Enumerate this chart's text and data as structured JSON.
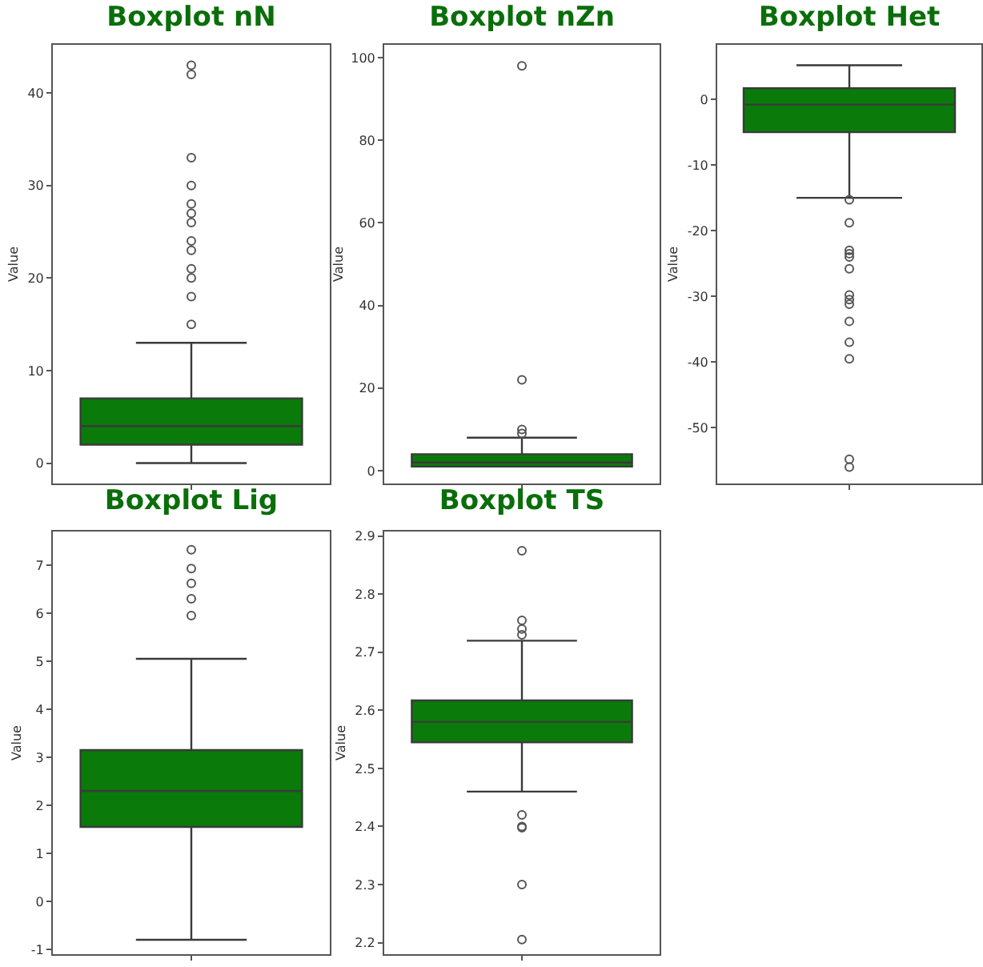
{
  "chart_data": [
    {
      "type": "box",
      "title": "Boxplot nN",
      "ylabel": "Value",
      "categories": [
        null
      ],
      "tick_labels": "y",
      "grid": false,
      "ylim": [
        -2.2,
        45.2
      ],
      "yticks": [
        0,
        10,
        20,
        30,
        40
      ],
      "series": [
        {
          "color": "#0a7a0a",
          "boxes": [
            {
              "low": 0,
              "q1": 2,
              "median": 4,
              "q3": 7,
              "high": 13,
              "outliers": [
                15,
                18,
                20,
                21,
                23,
                24,
                26,
                27,
                28,
                30,
                33,
                42,
                43
              ]
            }
          ]
        }
      ]
    },
    {
      "type": "box",
      "title": "Boxplot nZn",
      "ylabel": "Value",
      "categories": [
        null
      ],
      "tick_labels": "y",
      "grid": false,
      "ylim": [
        -3.1,
        103.1
      ],
      "yticks": [
        0,
        20,
        40,
        60,
        80,
        100
      ],
      "series": [
        {
          "color": "#0a7a0a",
          "boxes": [
            {
              "low": 1,
              "q1": 1,
              "median": 2,
              "q3": 4,
              "high": 8,
              "outliers": [
                9,
                10,
                22,
                98
              ]
            }
          ]
        }
      ]
    },
    {
      "type": "box",
      "title": "Boxplot Het",
      "ylabel": "Value",
      "categories": [
        null
      ],
      "tick_labels": "y",
      "grid": false,
      "ylim": [
        -58.5,
        8.3
      ],
      "yticks": [
        -50,
        -40,
        -30,
        -20,
        -10,
        0
      ],
      "series": [
        {
          "color": "#0a7a0a",
          "boxes": [
            {
              "low": -15,
              "q1": -5,
              "median": -0.8,
              "q3": 1.7,
              "high": 5.2,
              "outliers": [
                -15.3,
                -18.8,
                -23,
                -23.5,
                -24,
                -25.8,
                -29.8,
                -30.5,
                -31.2,
                -33.8,
                -37,
                -39.5,
                -54.8,
                -56
              ]
            }
          ]
        }
      ]
    },
    {
      "type": "box",
      "title": "Boxplot Lig",
      "ylabel": "Value",
      "categories": [
        null
      ],
      "tick_labels": "y",
      "grid": false,
      "ylim": [
        -1.1,
        7.7
      ],
      "yticks": [
        -1,
        0,
        1,
        2,
        3,
        4,
        5,
        6,
        7
      ],
      "series": [
        {
          "color": "#0a7a0a",
          "boxes": [
            {
              "low": -0.8,
              "q1": 1.55,
              "median": 2.3,
              "q3": 3.15,
              "high": 5.05,
              "outliers": [
                5.95,
                6.3,
                6.62,
                6.93,
                7.32
              ]
            }
          ]
        }
      ]
    },
    {
      "type": "box",
      "title": "Boxplot TS",
      "ylabel": "Value",
      "categories": [
        null
      ],
      "tick_labels": "y",
      "grid": false,
      "ylim": [
        2.18,
        2.908
      ],
      "yticks": [
        2.2,
        2.3,
        2.4,
        2.5,
        2.6,
        2.7,
        2.8,
        2.9
      ],
      "series": [
        {
          "color": "#0a7a0a",
          "boxes": [
            {
              "low": 2.46,
              "q1": 2.545,
              "median": 2.58,
              "q3": 2.617,
              "high": 2.72,
              "outliers": [
                2.73,
                2.74,
                2.755,
                2.875,
                2.42,
                2.4,
                2.398,
                2.3,
                2.205
              ]
            }
          ]
        }
      ]
    }
  ]
}
